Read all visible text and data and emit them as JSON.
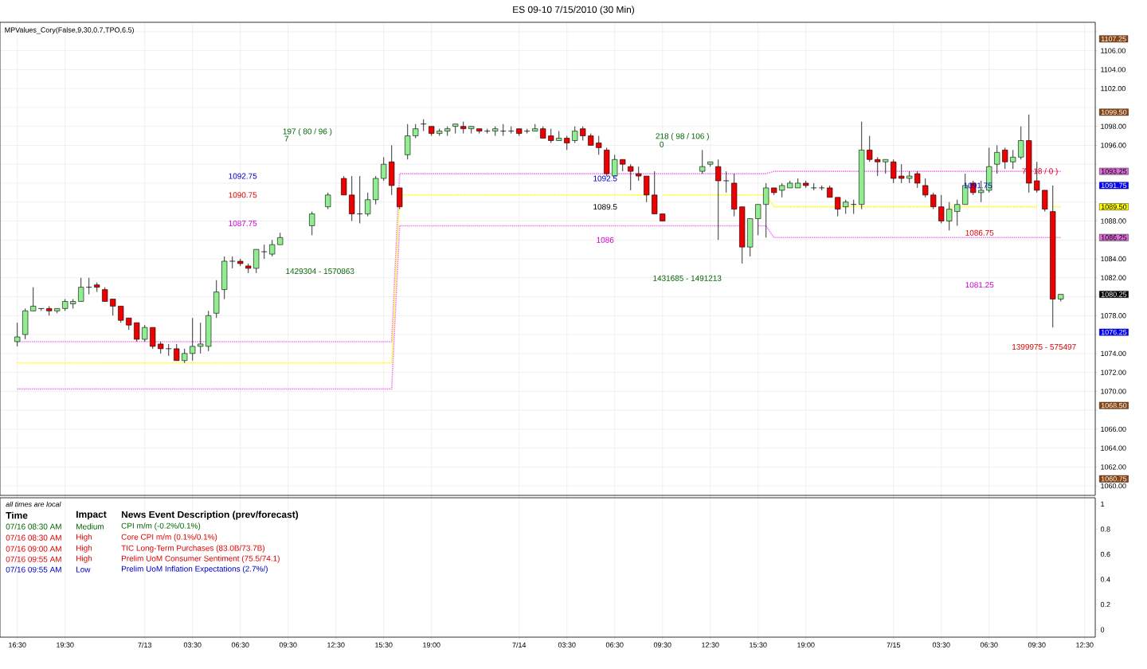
{
  "chart_data": [
    {
      "type": "candlestick",
      "title": "ES 09-10  7/15/2010 (30 Min)",
      "categories": [
        null,
        null,
        null,
        null,
        null,
        null,
        null,
        null,
        null,
        null,
        null,
        null,
        null,
        null,
        null,
        null,
        null,
        null,
        null,
        null,
        null,
        null,
        null,
        null,
        null,
        null,
        null,
        null,
        null,
        null,
        null,
        null,
        null,
        null,
        null,
        null,
        null,
        null,
        null,
        null,
        null,
        null,
        null,
        null,
        null,
        null,
        null,
        null,
        null,
        null,
        null,
        null,
        null,
        null,
        null,
        null,
        null,
        null,
        null,
        null,
        null,
        null,
        null,
        null,
        null,
        null,
        null,
        null,
        null,
        null,
        null,
        null,
        null,
        null,
        null,
        null,
        null,
        null,
        null,
        null,
        null,
        null,
        null,
        null,
        null,
        null,
        null,
        null,
        null,
        null,
        null,
        null,
        null,
        null,
        null,
        null,
        null,
        null,
        null,
        null,
        null,
        null,
        null,
        null,
        null,
        null,
        null,
        null,
        null,
        null,
        null,
        null,
        null,
        null,
        null,
        null,
        null,
        null,
        null,
        null,
        null,
        null,
        null,
        null,
        null,
        null,
        null,
        null,
        null,
        null,
        null,
        null,
        null,
        null,
        null,
        null
      ],
      "ohlc": [
        [
          1075.25,
          1077.25,
          1074.75,
          1075.75
        ],
        [
          1076.0,
          1078.75,
          1075.5,
          1078.5
        ],
        [
          1078.5,
          1081.0,
          1078.5,
          1079.0
        ],
        [
          1078.75,
          1078.75,
          1078.5,
          1078.75
        ],
        [
          1078.75,
          1079.0,
          1078.0,
          1078.5
        ],
        [
          1078.5,
          1078.75,
          1078.25,
          1078.75
        ],
        [
          1078.75,
          1079.75,
          1078.5,
          1079.5
        ],
        [
          1079.25,
          1079.75,
          1078.75,
          1079.5
        ],
        [
          1079.5,
          1082.0,
          1079.5,
          1081.0
        ],
        [
          1081.0,
          1082.0,
          1080.25,
          1081.0
        ],
        [
          1081.25,
          1081.5,
          1080.5,
          1081.0
        ],
        [
          1080.75,
          1081.0,
          1079.5,
          1079.5
        ],
        [
          1079.75,
          1079.75,
          1078.0,
          1079.0
        ],
        [
          1079.0,
          1079.0,
          1077.25,
          1077.5
        ],
        [
          1077.75,
          1077.75,
          1076.5,
          1077.0
        ],
        [
          1077.25,
          1077.25,
          1075.25,
          1075.5
        ],
        [
          1075.5,
          1077.0,
          1075.25,
          1076.75
        ],
        [
          1076.75,
          1076.75,
          1074.5,
          1074.75
        ],
        [
          1075.0,
          1075.25,
          1074.0,
          1074.5
        ],
        [
          1074.5,
          1075.0,
          1073.75,
          1074.5
        ],
        [
          1074.5,
          1075.0,
          1073.25,
          1073.25
        ],
        [
          1073.25,
          1074.5,
          1073.0,
          1074.0
        ],
        [
          1074.0,
          1077.75,
          1073.25,
          1074.75
        ],
        [
          1074.75,
          1077.25,
          1074.0,
          1075.0
        ],
        [
          1074.75,
          1078.5,
          1074.25,
          1078.0
        ],
        [
          1078.25,
          1081.75,
          1077.75,
          1080.5
        ],
        [
          1080.75,
          1084.25,
          1079.75,
          1083.75
        ],
        [
          1083.75,
          1084.25,
          1083.0,
          1083.75
        ],
        [
          1083.75,
          1084.0,
          1083.25,
          1083.5
        ],
        [
          1083.25,
          1083.5,
          1082.5,
          1083.0
        ],
        [
          1083.0,
          1085.0,
          1082.5,
          1085.0
        ],
        [
          1084.75,
          1085.5,
          1084.0,
          1084.75
        ],
        [
          1084.5,
          1086.0,
          1084.25,
          1085.5
        ],
        [
          1085.5,
          1086.75,
          1085.5,
          1086.25
        ],
        null,
        null,
        null,
        [
          1087.5,
          1089.0,
          1086.5,
          1088.75
        ],
        null,
        [
          1089.5,
          1091.0,
          1089.25,
          1090.75
        ],
        null,
        [
          1092.5,
          1092.75,
          1090.75,
          1090.75
        ],
        [
          1090.75,
          1092.75,
          1088.0,
          1088.75
        ],
        [
          1088.75,
          1092.75,
          1087.75,
          1088.75
        ],
        [
          1088.75,
          1091.0,
          1088.5,
          1090.25
        ],
        [
          1090.25,
          1092.75,
          1089.75,
          1092.5
        ],
        [
          1092.5,
          1094.75,
          1092.25,
          1094.0
        ],
        [
          1094.25,
          1096.0,
          1090.75,
          1091.75
        ],
        [
          1091.5,
          1091.5,
          1089.25,
          1089.5
        ],
        [
          1095.0,
          1098.25,
          1094.5,
          1097.0
        ],
        [
          1097.0,
          1098.25,
          1096.75,
          1097.75
        ],
        [
          1098.25,
          1098.75,
          1097.5,
          1098.25
        ],
        [
          1098.0,
          1098.0,
          1097.0,
          1097.25
        ],
        [
          1097.25,
          1097.75,
          1097.0,
          1097.5
        ],
        [
          1097.5,
          1098.0,
          1097.0,
          1097.75
        ],
        [
          1098.0,
          1098.25,
          1097.25,
          1098.25
        ],
        [
          1098.0,
          1098.5,
          1097.25,
          1097.75
        ],
        [
          1097.75,
          1098.0,
          1097.25,
          1098.0
        ],
        [
          1097.75,
          1097.75,
          1097.25,
          1097.5
        ],
        [
          1097.5,
          1097.75,
          1097.25,
          1097.5
        ],
        [
          1097.5,
          1098.0,
          1097.0,
          1097.75
        ],
        [
          1097.5,
          1098.25,
          1097.0,
          1097.5
        ],
        [
          1097.5,
          1098.0,
          1097.25,
          1097.5
        ],
        [
          1097.75,
          1097.75,
          1097.0,
          1097.25
        ],
        [
          1097.5,
          1097.75,
          1097.25,
          1097.5
        ],
        [
          1097.5,
          1098.25,
          1097.5,
          1097.75
        ],
        [
          1097.75,
          1098.0,
          1096.75,
          1096.75
        ],
        [
          1097.0,
          1097.75,
          1096.25,
          1096.5
        ],
        [
          1096.5,
          1097.5,
          1096.5,
          1096.75
        ],
        [
          1096.75,
          1097.0,
          1095.5,
          1096.25
        ],
        [
          1096.5,
          1098.0,
          1096.25,
          1097.5
        ],
        [
          1097.75,
          1098.0,
          1096.5,
          1097.0
        ],
        [
          1097.0,
          1097.25,
          1096.0,
          1096.0
        ],
        [
          1096.25,
          1097.0,
          1095.0,
          1095.75
        ],
        [
          1095.5,
          1095.75,
          1092.75,
          1093.0
        ],
        [
          1092.75,
          1095.0,
          1092.75,
          1094.5
        ],
        [
          1094.5,
          1094.5,
          1093.25,
          1094.0
        ],
        [
          1093.75,
          1094.0,
          1091.25,
          1093.25
        ],
        [
          1093.0,
          1093.75,
          1092.25,
          1092.75
        ],
        [
          1092.75,
          1092.75,
          1090.0,
          1090.75
        ],
        [
          1090.75,
          1093.25,
          1088.75,
          1088.75
        ],
        [
          1088.75,
          1088.75,
          1088.0,
          1088.0
        ],
        null,
        null,
        null,
        null,
        [
          1093.25,
          1095.5,
          1093.0,
          1093.75
        ],
        [
          1094.0,
          1094.25,
          1093.75,
          1094.25
        ],
        [
          1093.75,
          1094.5,
          1086.0,
          1092.25
        ],
        [
          1092.25,
          1093.25,
          1091.0,
          1092.25
        ],
        [
          1092.0,
          1093.0,
          1088.5,
          1089.25
        ],
        [
          1089.5,
          1089.5,
          1083.5,
          1085.25
        ],
        [
          1085.25,
          1088.25,
          1084.25,
          1088.25
        ],
        [
          1088.25,
          1089.75,
          1086.5,
          1089.75
        ],
        [
          1089.75,
          1092.0,
          1086.25,
          1091.5
        ],
        [
          1091.5,
          1091.5,
          1090.75,
          1091.0
        ],
        [
          1091.25,
          1092.0,
          1090.5,
          1091.75
        ],
        [
          1091.5,
          1092.25,
          1091.5,
          1092.0
        ],
        [
          1091.5,
          1092.5,
          1091.5,
          1092.0
        ],
        [
          1092.0,
          1092.25,
          1091.5,
          1091.75
        ],
        [
          1091.5,
          1092.0,
          1091.25,
          1091.5
        ],
        [
          1091.5,
          1091.75,
          1091.25,
          1091.5
        ],
        [
          1091.5,
          1091.75,
          1090.5,
          1090.5
        ],
        [
          1090.5,
          1090.5,
          1088.5,
          1089.25
        ],
        [
          1089.5,
          1090.25,
          1088.75,
          1090.0
        ],
        [
          1089.75,
          1090.25,
          1088.75,
          1089.75
        ],
        [
          1089.75,
          1098.5,
          1089.25,
          1095.5
        ],
        [
          1095.5,
          1097.0,
          1094.25,
          1094.5
        ],
        [
          1094.5,
          1094.75,
          1092.75,
          1094.25
        ],
        [
          1094.25,
          1094.5,
          1093.0,
          1094.5
        ],
        [
          1094.25,
          1094.5,
          1092.0,
          1092.5
        ],
        [
          1092.75,
          1094.0,
          1092.0,
          1092.5
        ],
        [
          1092.5,
          1093.25,
          1092.0,
          1092.75
        ],
        [
          1093.0,
          1093.25,
          1091.5,
          1092.0
        ],
        [
          1091.75,
          1092.5,
          1090.5,
          1090.75
        ],
        [
          1090.75,
          1091.0,
          1089.25,
          1089.5
        ],
        [
          1089.5,
          1090.75,
          1087.75,
          1088.0
        ],
        [
          1088.0,
          1090.0,
          1087.0,
          1089.25
        ],
        [
          1089.0,
          1090.25,
          1087.5,
          1089.75
        ],
        [
          1089.75,
          1093.0,
          1089.75,
          1091.75
        ],
        [
          1092.0,
          1092.25,
          1090.75,
          1091.0
        ],
        [
          1091.0,
          1092.25,
          1090.0,
          1091.25
        ],
        [
          1091.25,
          1095.75,
          1091.0,
          1093.75
        ],
        [
          1094.0,
          1096.0,
          1093.0,
          1095.25
        ],
        [
          1095.5,
          1095.75,
          1093.5,
          1094.25
        ],
        [
          1094.25,
          1095.5,
          1093.5,
          1094.75
        ],
        [
          1094.75,
          1098.0,
          1094.5,
          1096.5
        ],
        [
          1096.5,
          1099.25,
          1091.0,
          1092.0
        ],
        [
          1092.25,
          1094.25,
          1091.0,
          1091.25
        ],
        [
          1091.25,
          1091.25,
          1089.0,
          1089.25
        ],
        [
          1089.0,
          1091.75,
          1076.75,
          1079.75
        ],
        [
          1079.75,
          1080.25,
          1079.5,
          1080.25
        ],
        null,
        null,
        null,
        null
      ],
      "colors": [
        "#90ee90",
        "#90ee90",
        "#90ee90",
        "#000000",
        "#ee0000",
        "#90ee90",
        "#90ee90",
        "#90ee90",
        "#90ee90",
        "#000000",
        "#ee0000",
        "#ee0000",
        "#ee0000",
        "#ee0000",
        "#ee0000",
        "#ee0000",
        "#90ee90",
        "#ee0000",
        "#ee0000",
        "#000000",
        "#ee0000",
        "#90ee90",
        "#90ee90",
        "#90ee90",
        "#90ee90",
        "#90ee90",
        "#90ee90",
        "#000000",
        "#ee0000",
        "#ee0000",
        "#90ee90",
        "#000000",
        "#90ee90",
        "#90ee90",
        null,
        null,
        null,
        "#90ee90",
        null,
        "#90ee90",
        null,
        "#ee0000",
        "#ee0000",
        "#000000",
        "#90ee90",
        "#90ee90",
        "#90ee90",
        "#ee0000",
        "#ee0000",
        "#90ee90",
        "#90ee90",
        "#000000",
        "#ee0000",
        "#90ee90",
        "#90ee90",
        "#90ee90",
        "#ee0000",
        "#90ee90",
        "#ee0000",
        "#000000",
        "#90ee90",
        "#000000",
        "#000000",
        "#ee0000",
        "#000000",
        "#90ee90",
        "#ee0000",
        "#ee0000",
        "#90ee90",
        "#ee0000",
        "#90ee90",
        "#ee0000",
        "#ee0000",
        "#ee0000",
        "#ee0000",
        "#90ee90",
        "#ee0000",
        "#ee0000",
        "#ee0000",
        "#ee0000",
        "#ee0000",
        "#ee0000",
        null,
        null,
        null,
        null,
        "#90ee90",
        "#90ee90",
        "#ee0000",
        "#000000",
        "#ee0000",
        "#ee0000",
        "#90ee90",
        "#90ee90",
        "#90ee90",
        "#ee0000",
        "#90ee90",
        "#90ee90",
        "#90ee90",
        "#ee0000",
        "#000000",
        "#000000",
        "#ee0000",
        "#ee0000",
        "#90ee90",
        "#000000",
        "#90ee90",
        "#ee0000",
        "#ee0000",
        "#90ee90",
        "#ee0000",
        "#ee0000",
        "#90ee90",
        "#ee0000",
        "#ee0000",
        "#ee0000",
        "#ee0000",
        "#90ee90",
        "#90ee90",
        "#90ee90",
        "#ee0000",
        "#90ee90",
        "#90ee90",
        "#90ee90",
        "#ee0000",
        "#90ee90",
        "#90ee90",
        "#ee0000",
        "#ee0000",
        "#ee0000",
        "#ee0000",
        "#90ee90",
        null,
        null,
        null,
        null
      ],
      "series": [
        {
          "type": "line",
          "color": "#ee82ee",
          "line_style": "dotted",
          "values": [
            1075.25,
            1075.25,
            1075.25,
            1075.25,
            1075.25,
            1075.25,
            1075.25,
            1075.25,
            1075.25,
            1075.25,
            1075.25,
            1075.25,
            1075.25,
            1075.25,
            1075.25,
            1075.25,
            1075.25,
            1075.25,
            1075.25,
            1075.25,
            1075.25,
            1075.25,
            1075.25,
            1075.25,
            1075.25,
            1075.25,
            1075.25,
            1075.25,
            1075.25,
            1075.25,
            1075.25,
            1075.25,
            1075.25,
            1075.25,
            1075.25,
            1075.25,
            1075.25,
            1075.25,
            1075.25,
            1075.25,
            1075.25,
            1075.25,
            1075.25,
            1075.25,
            1075.25,
            1075.25,
            1075.25,
            1075.25,
            1093.0,
            1093.0,
            1093.0,
            1093.0,
            1093.0,
            1093.0,
            1093.0,
            1093.0,
            1093.0,
            1093.0,
            1093.0,
            1093.0,
            1093.0,
            1093.0,
            1093.0,
            1093.0,
            1093.0,
            1093.0,
            1093.0,
            1093.0,
            1093.0,
            1093.0,
            1093.0,
            1093.0,
            1093.0,
            1093.0,
            1093.0,
            1093.0,
            1093.0,
            1093.0,
            1093.0,
            1093.0,
            1093.0,
            1093.0,
            1093.0,
            1093.0,
            1093.0,
            1093.0,
            1093.0,
            1093.0,
            1093.0,
            1093.0,
            1093.0,
            1093.0,
            1093.0,
            1093.0,
            1093.0,
            1093.25,
            1093.25,
            1093.25,
            1093.25,
            1093.25,
            1093.25,
            1093.25,
            1093.25,
            1093.25,
            1093.25,
            1093.25,
            1093.25,
            1093.25,
            1093.25,
            1093.25,
            1093.25,
            1093.25,
            1093.25,
            1093.25,
            1093.25,
            1093.25,
            1093.25,
            1093.25,
            1093.25,
            1093.25,
            1093.25,
            1093.25,
            1093.25,
            1093.25,
            1093.25,
            1093.25,
            1093.25,
            1093.25,
            1093.25,
            1093.25,
            1093.25,
            1093.25,
            null,
            null,
            null,
            null
          ]
        },
        {
          "type": "line",
          "color": "#ffff00",
          "line_style": "dotted",
          "values": [
            1073.0,
            1073.0,
            1073.0,
            1073.0,
            1073.0,
            1073.0,
            1073.0,
            1073.0,
            1073.0,
            1073.0,
            1073.0,
            1073.0,
            1073.0,
            1073.0,
            1073.0,
            1073.0,
            1073.0,
            1073.0,
            1073.0,
            1073.0,
            1073.0,
            1073.0,
            1073.0,
            1073.0,
            1073.0,
            1073.0,
            1073.0,
            1073.0,
            1073.0,
            1073.0,
            1073.0,
            1073.0,
            1073.0,
            1073.0,
            1073.0,
            1073.0,
            1073.0,
            1073.0,
            1073.0,
            1073.0,
            1073.0,
            1073.0,
            1073.0,
            1073.0,
            1073.0,
            1073.0,
            1073.0,
            1073.0,
            1090.75,
            1090.75,
            1090.75,
            1090.75,
            1090.75,
            1090.75,
            1090.75,
            1090.75,
            1090.75,
            1090.75,
            1090.75,
            1090.75,
            1090.75,
            1090.75,
            1090.75,
            1090.75,
            1090.75,
            1090.75,
            1090.75,
            1090.75,
            1090.75,
            1090.75,
            1090.75,
            1090.75,
            1090.75,
            1090.75,
            1090.75,
            1090.75,
            1090.75,
            1090.75,
            1090.75,
            1090.75,
            null,
            1090.75,
            1090.75,
            1090.75,
            1090.75,
            1090.75,
            1090.75,
            1090.75,
            1090.75,
            1090.75,
            1090.75,
            1090.75,
            1090.75,
            1090.75,
            1090.75,
            1089.5,
            1089.5,
            1089.5,
            1089.5,
            1089.5,
            1089.5,
            1089.5,
            1089.5,
            1089.5,
            1089.5,
            1089.5,
            1089.5,
            1089.5,
            1089.5,
            1089.5,
            1089.5,
            1089.5,
            1089.5,
            1089.5,
            1089.5,
            1089.5,
            null,
            1089.5,
            1089.5,
            1089.5,
            1089.5,
            1089.5,
            1089.5,
            1089.5,
            1089.5,
            1089.5,
            1089.5,
            1089.5,
            1089.5,
            null,
            1089.5,
            1089.5,
            null,
            null,
            null,
            null
          ]
        },
        {
          "type": "line",
          "color": "#ee82ee",
          "line_style": "dotted",
          "values": [
            1070.25,
            1070.25,
            1070.25,
            1070.25,
            1070.25,
            1070.25,
            1070.25,
            1070.25,
            1070.25,
            1070.25,
            1070.25,
            1070.25,
            1070.25,
            1070.25,
            1070.25,
            1070.25,
            1070.25,
            1070.25,
            1070.25,
            1070.25,
            1070.25,
            1070.25,
            1070.25,
            1070.25,
            1070.25,
            1070.25,
            1070.25,
            1070.25,
            1070.25,
            1070.25,
            1070.25,
            1070.25,
            1070.25,
            1070.25,
            1070.25,
            1070.25,
            1070.25,
            1070.25,
            1070.25,
            1070.25,
            1070.25,
            1070.25,
            1070.25,
            1070.25,
            1070.25,
            1070.25,
            1070.25,
            1070.25,
            1087.5,
            1087.5,
            1087.5,
            1087.5,
            1087.5,
            1087.5,
            1087.5,
            1087.5,
            1087.5,
            1087.5,
            1087.5,
            1087.5,
            1087.5,
            1087.5,
            1087.5,
            1087.5,
            1087.5,
            1087.5,
            1087.5,
            1087.5,
            1087.5,
            1087.5,
            1087.5,
            1087.5,
            1087.5,
            1087.5,
            1087.5,
            1087.5,
            1087.5,
            1087.5,
            1087.5,
            1087.5,
            1087.5,
            1087.5,
            1087.5,
            1087.5,
            1087.5,
            1087.5,
            1087.5,
            1087.5,
            1087.5,
            1087.5,
            1087.5,
            1087.5,
            null,
            1087.5,
            1087.5,
            1086.25,
            1086.25,
            1086.25,
            1086.25,
            1086.25,
            1086.25,
            1086.25,
            1086.25,
            1086.25,
            1086.25,
            1086.25,
            1086.25,
            1086.25,
            1086.25,
            1086.25,
            1086.25,
            1086.25,
            1086.25,
            1086.25,
            1086.25,
            1086.25,
            1086.25,
            1086.25,
            1086.25,
            1086.25,
            1086.25,
            1086.25,
            1086.25,
            1086.25,
            1086.25,
            1086.25,
            1086.25,
            1086.25,
            1086.25,
            1086.25,
            1086.25,
            1086.25,
            null,
            null,
            null,
            null
          ]
        }
      ],
      "ylim": [
        1059,
        1109
      ],
      "yticks": [
        {
          "value": 1060,
          "label": "1060.00"
        },
        {
          "value": 1062,
          "label": "1062.00"
        },
        {
          "value": 1064,
          "label": "1064.00"
        },
        {
          "value": 1066,
          "label": "1066.00"
        },
        {
          "value": 1068,
          "label": null
        },
        {
          "value": 1070,
          "label": "1070.00"
        },
        {
          "value": 1072,
          "label": "1072.00"
        },
        {
          "value": 1074,
          "label": "1074.00"
        },
        {
          "value": 1076,
          "label": null
        },
        {
          "value": 1078,
          "label": "1078.00"
        },
        {
          "value": 1080,
          "label": null
        },
        {
          "value": 1082,
          "label": "1082.00"
        },
        {
          "value": 1084,
          "label": "1084.00"
        },
        {
          "value": 1086,
          "label": null
        },
        {
          "value": 1088,
          "label": "1088.00"
        },
        {
          "value": 1090,
          "label": null
        },
        {
          "value": 1092,
          "label": null
        },
        {
          "value": 1094,
          "label": null
        },
        {
          "value": 1096,
          "label": "1096.00"
        },
        {
          "value": 1098,
          "label": "1098.00"
        },
        {
          "value": 1100,
          "label": null
        },
        {
          "value": 1102,
          "label": "1102.00"
        },
        {
          "value": 1104,
          "label": "1104.00"
        },
        {
          "value": 1106,
          "label": "1106.00"
        },
        {
          "value": 1108,
          "label": null
        }
      ],
      "grid": true,
      "tick_labels": "y",
      "annotations": [
        "MPValues_Cory(False,9,30,0.7,TPO,6.5)",
        "197 ( 80 / 96 )",
        "7",
        "1092.75",
        "1090.75",
        "1087.75",
        "1429304 - 1570863",
        "218 ( 98 / 106 )",
        "0",
        "1092.5",
        "1089.5",
        "1086",
        "1431685 - 1491213",
        "7 ( 18 / 0 )",
        "1091.75",
        "1086.75",
        "1081.25",
        "1399975 - 575497",
        "1107.25",
        "1099.50",
        "1093.25",
        "1091.75",
        "1089.50",
        "1086.25",
        "1080.25",
        "1076.25",
        "1068.50",
        "1060.75"
      ]
    },
    {
      "type": "line",
      "values": [
        null,
        null,
        null,
        null,
        null,
        null,
        null,
        null,
        null,
        null,
        null,
        null,
        null,
        null,
        null,
        null,
        null,
        null,
        null,
        null,
        null,
        null,
        null,
        null,
        null,
        null,
        null,
        null,
        null,
        null,
        null,
        null,
        null,
        null,
        null,
        null,
        null,
        null,
        null,
        null,
        null,
        null,
        null,
        null,
        null,
        null,
        null,
        null,
        null,
        null,
        null,
        null,
        null,
        null,
        null,
        null,
        null,
        null,
        null,
        null,
        null,
        null,
        null,
        null,
        null,
        null,
        null,
        null,
        null,
        null,
        null,
        null,
        null,
        null,
        null,
        null,
        null,
        null,
        null,
        null,
        null,
        null,
        null,
        null,
        null,
        null,
        null,
        null,
        null,
        null,
        null,
        null,
        null,
        null,
        null,
        null,
        null,
        null,
        null,
        null,
        null,
        null,
        null,
        null,
        null,
        null,
        null,
        null,
        null,
        null,
        null,
        null,
        null,
        null,
        null,
        null,
        null,
        null,
        null,
        null,
        null,
        null,
        null,
        null,
        null,
        null,
        null,
        null,
        null,
        null,
        null,
        null,
        null,
        null,
        null,
        null
      ],
      "categories": [
        "16:30",
        null,
        null,
        null,
        null,
        null,
        "19:30",
        null,
        null,
        null,
        null,
        null,
        null,
        null,
        null,
        null,
        "7/13",
        null,
        null,
        null,
        null,
        null,
        "03:30",
        null,
        null,
        null,
        null,
        null,
        "06:30",
        null,
        null,
        null,
        null,
        null,
        "09:30",
        null,
        null,
        null,
        null,
        null,
        "12:30",
        null,
        null,
        null,
        null,
        null,
        "15:30",
        null,
        null,
        null,
        null,
        null,
        "19:00",
        null,
        null,
        null,
        null,
        null,
        null,
        null,
        null,
        null,
        null,
        "7/14",
        null,
        null,
        null,
        null,
        null,
        "03:30",
        null,
        null,
        null,
        null,
        null,
        "06:30",
        null,
        null,
        null,
        null,
        null,
        "09:30",
        null,
        null,
        null,
        null,
        null,
        "12:30",
        null,
        null,
        null,
        null,
        null,
        "15:30",
        null,
        null,
        null,
        null,
        null,
        "19:00",
        null,
        null,
        null,
        null,
        null,
        null,
        null,
        null,
        null,
        null,
        "7/15",
        null,
        null,
        null,
        null,
        null,
        "03:30",
        null,
        null,
        null,
        null,
        null,
        "06:30",
        null,
        null,
        null,
        null,
        null,
        "09:30",
        null,
        null,
        null,
        null,
        null,
        "12:30",
        null
      ],
      "ylim": [
        -0.06,
        1.05
      ],
      "yticks": [
        0,
        0.2,
        0.4,
        0.6,
        0.8,
        1
      ],
      "grid": "x",
      "annotations": [
        "all times are local",
        "Time",
        "Impact",
        "News Event Description (prev/forecast)",
        "07/16 08:30 AM",
        "Medium",
        "CPI m/m (-0.2%/0.1%)",
        "07/16 08:30 AM",
        "High",
        "Core CPI m/m (0.1%/0.1%)",
        "07/16 09:00 AM",
        "High",
        "TIC Long-Term Purchases (83.0B/73.7B)",
        "07/16 09:55 AM",
        "High",
        "Prelim UoM Consumer Sentiment (75.5/74.1)",
        "07/16 09:55 AM",
        "Low",
        "Prelim UoM Inflation Expectations (2.7%/)"
      ]
    }
  ]
}
